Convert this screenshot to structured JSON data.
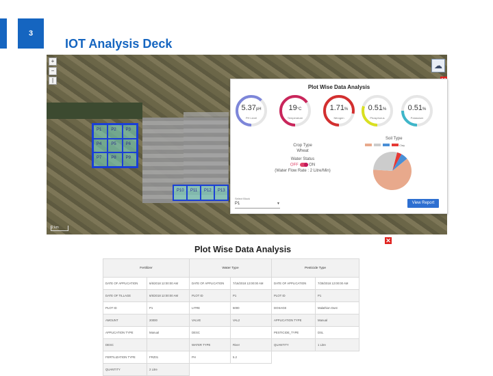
{
  "slide_number": "3",
  "deck_title": "IOT Analysis Deck",
  "map": {
    "zoom_in": "+",
    "zoom_out": "−",
    "extra_control": "|",
    "scale": "2 km",
    "plot_labels": [
      "P1",
      "P2",
      "P3",
      "P4",
      "P5",
      "P6",
      "P7",
      "P8",
      "P9"
    ],
    "strip_labels": [
      "P10",
      "P11",
      "P12",
      "P13"
    ]
  },
  "panel": {
    "title": "Plot Wise Data Analysis",
    "gauges": [
      {
        "value": "5.37",
        "unit": "pH",
        "label": "PH Level",
        "fraction": 0.62,
        "color": "#7d86d9"
      },
      {
        "value": "19",
        "unit": "°C",
        "label": "Temperature",
        "fraction": 0.65,
        "color": "#c9265b"
      },
      {
        "value": "1.71",
        "unit": "%",
        "label": "Nitrogen",
        "fraction": 0.78,
        "color": "#d32f2f"
      },
      {
        "value": "0.51",
        "unit": "%",
        "label": "Phosphorus",
        "fraction": 0.3,
        "color": "#d9e021"
      },
      {
        "value": "0.51",
        "unit": "%",
        "label": "Potassium",
        "fraction": 0.25,
        "color": "#3fb6c9"
      }
    ],
    "crop_type_label": "Crop Type",
    "crop_type_value": "Wheat",
    "water_status_label": "Water Status",
    "water_off": "OFF",
    "water_on": "ON",
    "water_flow": "(Water Flow Rate : 2 Litre/Min)",
    "soil_type_label": "Soil Type",
    "soil_legend": [
      "",
      "",
      "",
      "Clay"
    ],
    "soil_colors": [
      "#e8a98c",
      "#cccccc",
      "#4a8fd6",
      "#e53935"
    ],
    "soil_pie": {
      "slices": [
        0.62,
        0.28,
        0.06,
        0.04
      ]
    },
    "select_label": "Select Block",
    "select_value": "P1",
    "view_report": "View Report"
  },
  "table": {
    "title": "Plot Wise Data Analysis",
    "headers": [
      "Fertilizer",
      "Water Type",
      "Pesticide Type"
    ],
    "rows": [
      [
        "DATE OF APPLICATION",
        "6/6/2018 12:00:00 AM",
        "DATE OF APPLICATION",
        "7/16/2018 12:00:00 AM",
        "DATE OF APPLICATION",
        "7/28/2018 12:00:00 AM"
      ],
      [
        "DATE OF TILLAGE",
        "6/6/2018 12:00:00 AM",
        "PLOT ID",
        "P1",
        "PLOT ID",
        "P1"
      ],
      [
        "PLOT ID",
        "P1",
        "LITRE",
        "5000",
        "DOSAGE",
        "Malathion Dust"
      ],
      [
        "AMOUNT",
        "20000",
        "VALVE",
        "VAL2",
        "APPLICATION TYPE",
        "Manual"
      ],
      [
        "APPLICATION TYPE",
        "Manual",
        "DESC",
        "",
        "PESTICIDE_TYPE",
        "DSL"
      ],
      [
        "DESC",
        "",
        "WATER TYPE",
        "River",
        "QUANTITY",
        "1 Litre"
      ],
      [
        "FERTILIZATION TYPE",
        "FRZ01",
        "PH",
        "5.2",
        "",
        ""
      ],
      [
        "QUANTITY",
        "2 Litre",
        "",
        "",
        "",
        ""
      ]
    ]
  },
  "colors": {
    "accent": "#1565c0",
    "panel_button": "#2d6fd1",
    "close": "#e0221e",
    "table_header": "#d4d4f7"
  }
}
